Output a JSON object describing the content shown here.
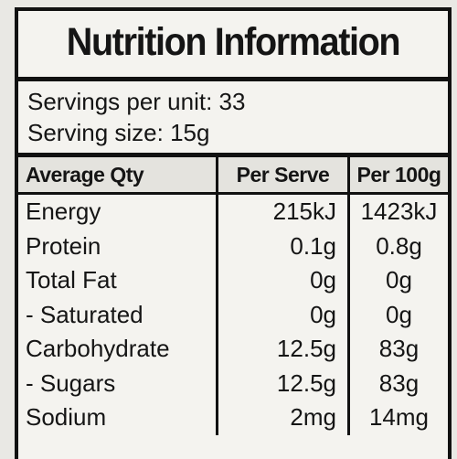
{
  "header": {
    "title": "Nutrition Information"
  },
  "servings": [
    "Servings per unit: 33",
    "Serving size: 15g"
  ],
  "table": {
    "columns": [
      "Average Qty",
      "Per Serve",
      "Per 100g"
    ],
    "rows": [
      [
        "Energy",
        "215kJ",
        "1423kJ"
      ],
      [
        "Protein",
        "0.1g",
        "0.8g"
      ],
      [
        "Total Fat",
        "0g",
        "0g"
      ],
      [
        "- Saturated",
        "0g",
        "0g"
      ],
      [
        "Carbohydrate",
        "12.5g",
        "83g"
      ],
      [
        "- Sugars",
        "12.5g",
        "83g"
      ],
      [
        "Sodium",
        "2mg",
        "14mg"
      ]
    ]
  }
}
